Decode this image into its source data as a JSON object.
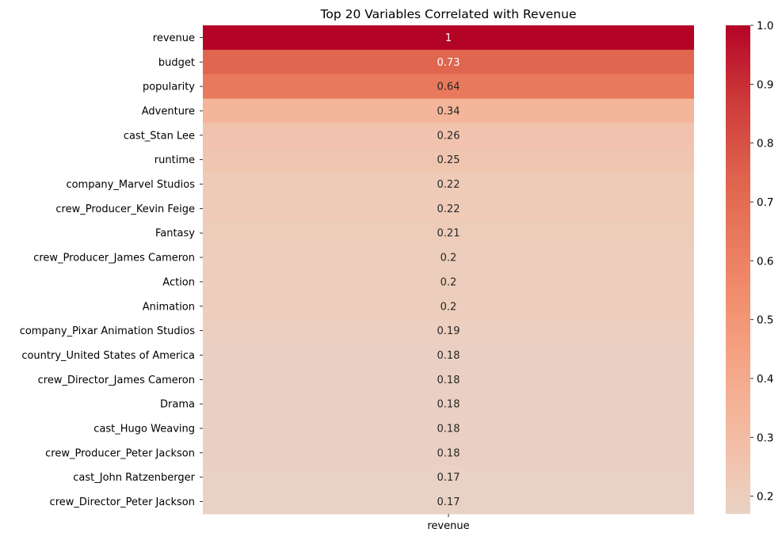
{
  "chart_data": {
    "type": "heatmap",
    "title": "Top 20 Variables Correlated with Revenue",
    "columns": [
      "revenue"
    ],
    "rows": [
      "revenue",
      "budget",
      "popularity",
      "Adventure",
      "cast_Stan Lee",
      "runtime",
      "company_Marvel Studios",
      "crew_Producer_Kevin Feige",
      "Fantasy",
      "crew_Producer_James Cameron",
      "Action",
      "Animation",
      "company_Pixar Animation Studios",
      "country_United States of America",
      "crew_Director_James Cameron",
      "Drama",
      "cast_Hugo Weaving",
      "crew_Producer_Peter Jackson",
      "cast_John Ratzenberger",
      "crew_Director_Peter Jackson"
    ],
    "values": [
      1.0,
      0.73,
      0.64,
      0.34,
      0.26,
      0.25,
      0.22,
      0.22,
      0.21,
      0.2,
      0.2,
      0.2,
      0.19,
      0.18,
      0.18,
      0.18,
      0.18,
      0.18,
      0.17,
      0.17
    ],
    "value_labels": [
      "1",
      "0.73",
      "0.64",
      "0.34",
      "0.26",
      "0.25",
      "0.22",
      "0.22",
      "0.21",
      "0.2",
      "0.2",
      "0.2",
      "0.19",
      "0.18",
      "0.18",
      "0.18",
      "0.18",
      "0.18",
      "0.17",
      "0.17"
    ],
    "colorbar": {
      "colormap": "coolwarm",
      "vmin": 0.17,
      "vmax": 1.0,
      "ticks": [
        0.2,
        0.3,
        0.4,
        0.5,
        0.6,
        0.7,
        0.8,
        0.9,
        1.0
      ],
      "tick_labels": [
        "0.2",
        "0.3",
        "0.4",
        "0.5",
        "0.6",
        "0.7",
        "0.8",
        "0.9",
        "1.0"
      ]
    }
  }
}
